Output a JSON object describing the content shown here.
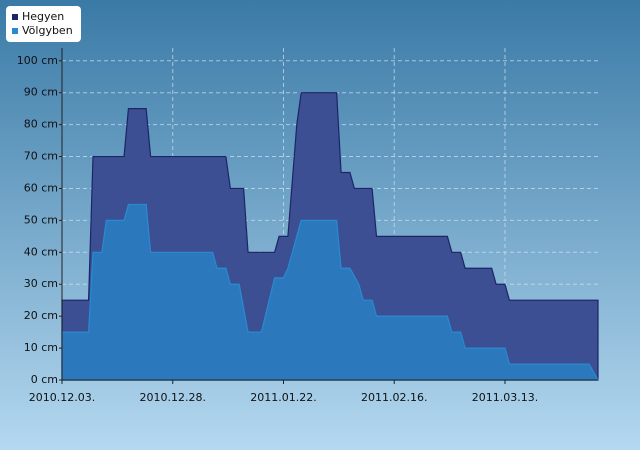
{
  "chart_data": {
    "type": "area",
    "legend": "top-left",
    "grid": true,
    "xlim": [
      "2010-12-03",
      "2011-04-03"
    ],
    "xticks": [
      {
        "value": "2010-12-03",
        "label": "2010.12.03."
      },
      {
        "value": "2010-12-28",
        "label": "2010.12.28."
      },
      {
        "value": "2011-01-22",
        "label": "2011.01.22."
      },
      {
        "value": "2011-02-16",
        "label": "2011.02.16."
      },
      {
        "value": "2011-03-13",
        "label": "2011.03.13."
      }
    ],
    "ylim": [
      0,
      104
    ],
    "yticks": [
      {
        "value": 0,
        "label": "0 cm"
      },
      {
        "value": 10,
        "label": "10 cm"
      },
      {
        "value": 20,
        "label": "20 cm"
      },
      {
        "value": 30,
        "label": "30 cm"
      },
      {
        "value": 40,
        "label": "40 cm"
      },
      {
        "value": 50,
        "label": "50 cm"
      },
      {
        "value": 60,
        "label": "60 cm"
      },
      {
        "value": 70,
        "label": "70 cm"
      },
      {
        "value": 80,
        "label": "80 cm"
      },
      {
        "value": 90,
        "label": "90 cm"
      },
      {
        "value": 100,
        "label": "100 cm"
      }
    ],
    "series": [
      {
        "name": "Hegyen",
        "color": "#1c2566",
        "fill": "#3c4f93",
        "x": [
          "2010-12-03",
          "2010-12-09",
          "2010-12-10",
          "2010-12-17",
          "2010-12-18",
          "2010-12-22",
          "2010-12-23",
          "2011-01-09",
          "2011-01-10",
          "2011-01-13",
          "2011-01-14",
          "2011-01-20",
          "2011-01-21",
          "2011-01-23",
          "2011-01-25",
          "2011-01-26",
          "2011-02-03",
          "2011-02-04",
          "2011-02-06",
          "2011-02-07",
          "2011-02-11",
          "2011-02-12",
          "2011-02-28",
          "2011-03-01",
          "2011-03-03",
          "2011-03-04",
          "2011-03-10",
          "2011-03-11",
          "2011-03-13",
          "2011-03-14",
          "2011-04-03"
        ],
        "values": [
          25,
          25,
          70,
          70,
          85,
          85,
          70,
          70,
          60,
          60,
          40,
          40,
          45,
          45,
          80,
          90,
          90,
          65,
          65,
          60,
          60,
          45,
          45,
          40,
          40,
          35,
          35,
          30,
          30,
          25,
          25
        ]
      },
      {
        "name": "Völgyben",
        "color": "#2a8ad0",
        "fill": "#2b78bd",
        "x": [
          "2010-12-03",
          "2010-12-09",
          "2010-12-10",
          "2010-12-12",
          "2010-12-13",
          "2010-12-17",
          "2010-12-18",
          "2010-12-22",
          "2010-12-23",
          "2011-01-06",
          "2011-01-07",
          "2011-01-09",
          "2011-01-10",
          "2011-01-12",
          "2011-01-14",
          "2011-01-17",
          "2011-01-20",
          "2011-01-22",
          "2011-01-23",
          "2011-01-25",
          "2011-01-26",
          "2011-02-03",
          "2011-02-04",
          "2011-02-06",
          "2011-02-08",
          "2011-02-09",
          "2011-02-11",
          "2011-02-12",
          "2011-02-28",
          "2011-03-01",
          "2011-03-03",
          "2011-03-04",
          "2011-03-13",
          "2011-03-14",
          "2011-04-01",
          "2011-04-03"
        ],
        "values": [
          15,
          15,
          40,
          40,
          50,
          50,
          55,
          55,
          40,
          40,
          35,
          35,
          30,
          30,
          15,
          15,
          32,
          32,
          35,
          45,
          50,
          50,
          35,
          35,
          30,
          25,
          25,
          20,
          20,
          15,
          15,
          10,
          10,
          5,
          5,
          0
        ]
      }
    ]
  }
}
